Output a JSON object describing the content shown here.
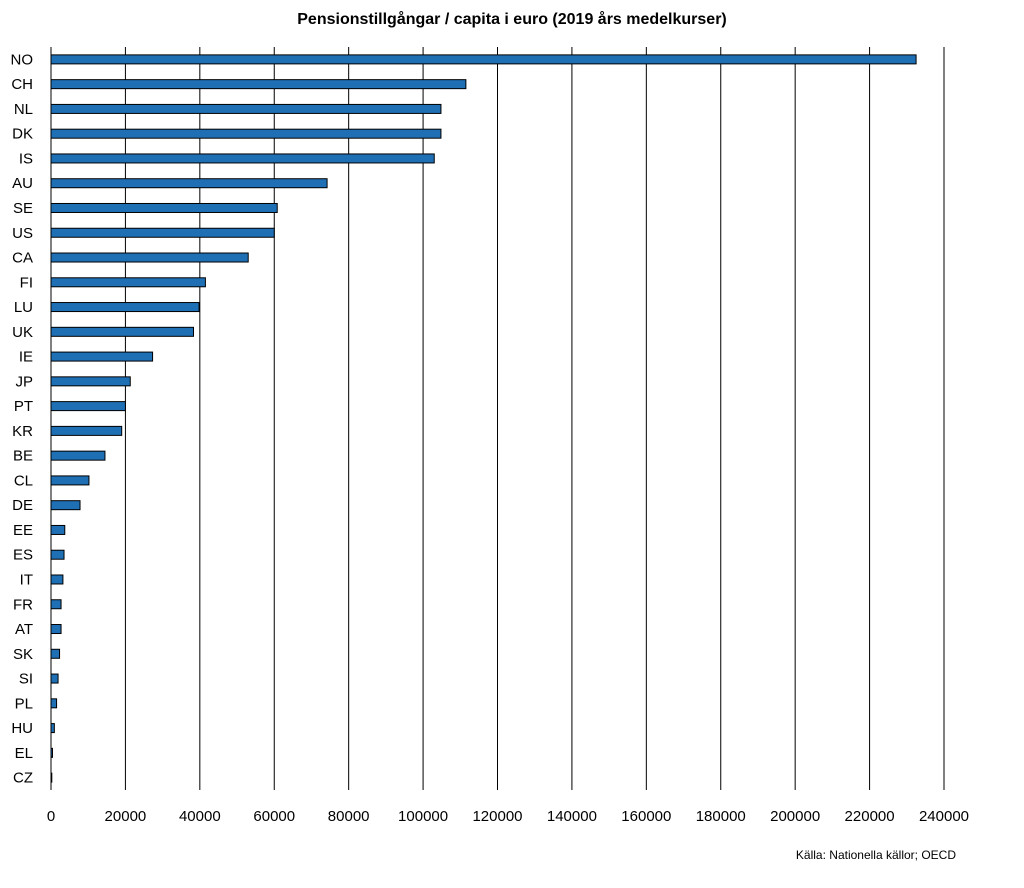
{
  "chart_data": {
    "type": "bar",
    "orientation": "horizontal",
    "title": "Pensionstillgångar / capita i euro (2019 års medelkurser)",
    "xlabel": "",
    "ylabel": "",
    "categories": [
      "NO",
      "CH",
      "NL",
      "DK",
      "IS",
      "AU",
      "SE",
      "US",
      "CA",
      "FI",
      "LU",
      "UK",
      "IE",
      "JP",
      "PT",
      "KR",
      "BE",
      "CL",
      "DE",
      "EE",
      "ES",
      "IT",
      "FR",
      "AT",
      "SK",
      "SI",
      "PL",
      "HU",
      "EL",
      "CZ"
    ],
    "values": [
      232500,
      111500,
      104800,
      104800,
      103000,
      74200,
      60800,
      60000,
      53000,
      41500,
      39800,
      38300,
      27300,
      21300,
      20000,
      19000,
      14500,
      10200,
      7800,
      3700,
      3500,
      3200,
      2700,
      2700,
      2300,
      1900,
      1500,
      900,
      400,
      100
    ],
    "xlim": [
      0,
      240000
    ],
    "xticks": [
      0,
      20000,
      40000,
      60000,
      80000,
      100000,
      120000,
      140000,
      160000,
      180000,
      200000,
      220000,
      240000
    ],
    "grid": true,
    "legend": "none",
    "bar_color": "#1f6fb5",
    "bar_edge_color": "#000000"
  },
  "source_note": "Källa: Nationella källor; OECD"
}
